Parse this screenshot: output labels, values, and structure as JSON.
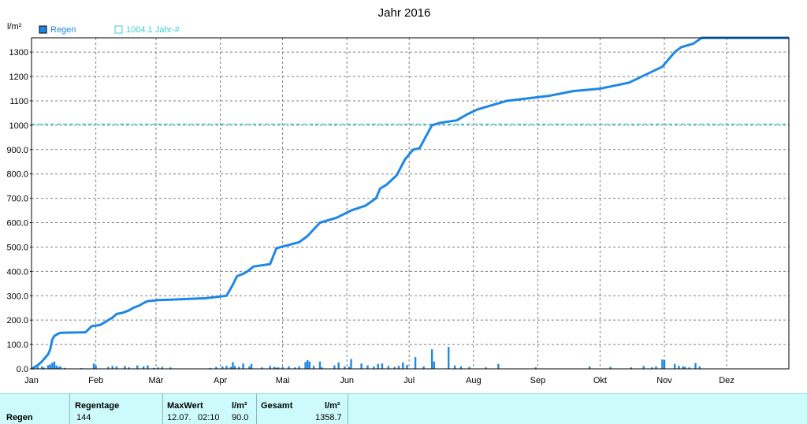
{
  "chart_data": {
    "type": "line",
    "title": "Jahr 2016",
    "ylabel": "l/m²",
    "ylim": [
      0,
      1358.7
    ],
    "y_ticks": [
      0,
      100,
      200,
      300,
      400,
      500,
      600,
      700,
      800,
      900,
      1000,
      1100,
      1200,
      1300
    ],
    "y_tick_labels": [
      "0.0",
      "100.0",
      "200.0",
      "300.0",
      "400.0",
      "500.0",
      "600.0",
      "700.0",
      "800.0",
      "900.0",
      "1000",
      "1100",
      "1200",
      "1300"
    ],
    "x_unit": "day_of_year",
    "xlim": [
      1,
      366
    ],
    "x_ticks": [
      1,
      32,
      61,
      92,
      122,
      153,
      183,
      214,
      245,
      275,
      306,
      336
    ],
    "x_tick_labels": [
      "Jan",
      "Feb",
      "Mär",
      "Apr",
      "Mai",
      "Jun",
      "Jul",
      "Aug",
      "Sep",
      "Okt",
      "Nov",
      "Dez"
    ],
    "grid": true,
    "legend_placement": "top-left",
    "colors": {
      "cumulative": "#1e87e6",
      "bars": "#1e87e6",
      "reference": "#3ecfcf",
      "grid": "#808080"
    },
    "series": [
      {
        "name": "Regen",
        "kind": "cumulative-line",
        "x": [
          1,
          4,
          6,
          9,
          10,
          11,
          12,
          14,
          15,
          27,
          30,
          34,
          36,
          38,
          40,
          42,
          45,
          48,
          50,
          53,
          55,
          57,
          60,
          62,
          65,
          68,
          85,
          95,
          98,
          100,
          103,
          105,
          108,
          116,
          119,
          130,
          134,
          140,
          148,
          155,
          162,
          167,
          169,
          172,
          177,
          181,
          185,
          188,
          194,
          196,
          198,
          206,
          208,
          211,
          216,
          220,
          230,
          250,
          262,
          275,
          289,
          305,
          309,
          311,
          314,
          320,
          324,
          366
        ],
        "y": [
          0,
          15,
          30,
          60,
          80,
          120,
          135,
          145,
          148,
          150,
          175,
          180,
          190,
          200,
          210,
          225,
          230,
          240,
          250,
          260,
          270,
          278,
          280,
          282,
          283,
          284,
          290,
          300,
          345,
          380,
          390,
          400,
          420,
          430,
          495,
          520,
          545,
          600,
          620,
          650,
          670,
          700,
          740,
          755,
          795,
          860,
          900,
          905,
          1000,
          1005,
          1010,
          1020,
          1030,
          1045,
          1065,
          1075,
          1100,
          1120,
          1140,
          1150,
          1175,
          1240,
          1280,
          1300,
          1320,
          1335,
          1358.7,
          1358.7
        ]
      },
      {
        "name": "",
        "kind": "daily-bars",
        "x": [
          4,
          6,
          7,
          9,
          10,
          11,
          12,
          13,
          14,
          15,
          17,
          25,
          31,
          32,
          38,
          40,
          42,
          46,
          48,
          52,
          55,
          57,
          60,
          62,
          64,
          68,
          87,
          90,
          93,
          95,
          97,
          98,
          99,
          101,
          103,
          106,
          107,
          112,
          116,
          118,
          119,
          120,
          122,
          125,
          128,
          130,
          133,
          134,
          135,
          137,
          140,
          141,
          147,
          149,
          152,
          154,
          155,
          160,
          163,
          166,
          168,
          170,
          173,
          176,
          178,
          180,
          182,
          186,
          190,
          194,
          195,
          202,
          205,
          208,
          212,
          220,
          226,
          244,
          270,
          280,
          290,
          296,
          300,
          302,
          305,
          306,
          311,
          313,
          315,
          316,
          318,
          321,
          323
        ],
        "y": [
          8,
          10,
          5,
          15,
          18,
          25,
          30,
          14,
          8,
          10,
          4,
          3,
          22,
          14,
          8,
          12,
          10,
          12,
          6,
          14,
          10,
          14,
          4,
          6,
          8,
          6,
          4,
          8,
          10,
          12,
          8,
          28,
          12,
          8,
          22,
          10,
          20,
          6,
          12,
          8,
          5,
          6,
          8,
          10,
          6,
          10,
          28,
          36,
          30,
          12,
          30,
          6,
          14,
          26,
          10,
          8,
          40,
          22,
          14,
          10,
          20,
          22,
          12,
          8,
          12,
          26,
          16,
          48,
          10,
          80,
          30,
          90,
          14,
          10,
          8,
          6,
          20,
          6,
          10,
          8,
          6,
          12,
          6,
          10,
          38,
          36,
          20,
          12,
          10,
          8,
          6,
          24,
          10
        ]
      },
      {
        "name": "1004.1 Jahr-#",
        "kind": "reference-line",
        "value": 1004.1
      }
    ],
    "legend": [
      {
        "label": "Regen",
        "style": "filled"
      },
      {
        "label": "1004.1 Jahr-#",
        "style": "outline"
      }
    ]
  },
  "stats": {
    "row_label": "Regen",
    "rain_days_header": "Regentage",
    "rain_days_value": "144",
    "max_header": "MaxWert",
    "max_date": "12.07.",
    "max_time": "02:10",
    "max_unit": "l/m²",
    "max_value": "90.0",
    "total_header": "Gesamt",
    "total_unit": "l/m²",
    "total_value": "1358.7"
  }
}
